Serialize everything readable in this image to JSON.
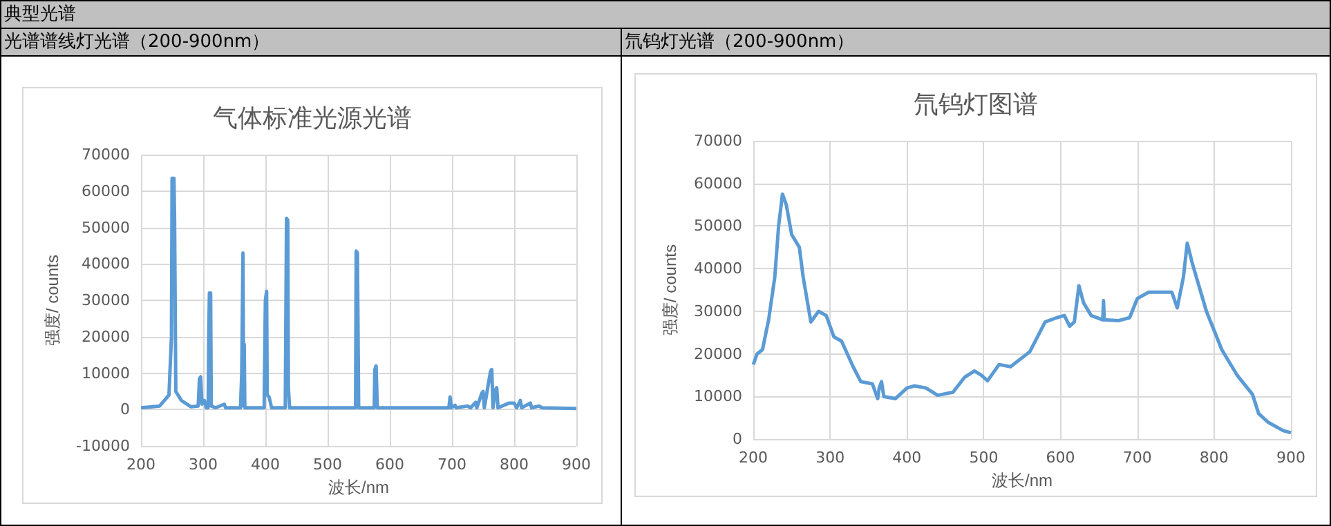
{
  "chart_data": [
    {
      "type": "line",
      "title": "气体标准光源光谱",
      "xlabel": "波长/nm",
      "ylabel": "强度/ counts",
      "annotations": [
        "典型光谱",
        "光谱谱线灯光谱（200-900nm）"
      ],
      "color": "#5b9bd5",
      "grid": true,
      "marker": "none",
      "x": [
        200,
        230,
        245,
        249,
        250,
        253,
        254,
        256,
        265,
        280,
        292,
        294,
        296,
        298,
        302,
        305,
        308,
        309,
        310,
        312,
        313,
        320,
        334,
        336,
        360,
        362,
        364,
        365,
        366,
        367,
        398,
        400,
        402,
        403,
        406,
        410,
        432,
        434,
        436,
        437,
        439,
        545,
        546,
        548,
        550,
        575,
        576,
        578,
        580,
        695,
        697,
        699,
        705,
        707,
        725,
        730,
        738,
        740,
        748,
        750,
        752,
        762,
        764,
        766,
        770,
        772,
        774,
        792,
        800,
        804,
        810,
        812,
        826,
        828,
        840,
        845,
        900
      ],
      "values": [
        500,
        1000,
        4000,
        20000,
        63500,
        63500,
        53000,
        5000,
        2500,
        800,
        1000,
        8500,
        9000,
        1500,
        2500,
        500,
        500,
        21000,
        32000,
        32000,
        1000,
        500,
        1500,
        500,
        500,
        10000,
        43000,
        1000,
        18000,
        500,
        500,
        30000,
        32500,
        4000,
        3500,
        500,
        500,
        52500,
        52000,
        6000,
        500,
        500,
        43500,
        43000,
        500,
        500,
        11000,
        12000,
        500,
        500,
        3500,
        500,
        1200,
        500,
        1000,
        500,
        2000,
        500,
        4500,
        5000,
        500,
        10500,
        11000,
        500,
        5500,
        6000,
        500,
        1800,
        1800,
        500,
        2500,
        500,
        1800,
        500,
        1000,
        500,
        300
      ],
      "xlim": [
        200,
        900
      ],
      "xticks": [
        200,
        300,
        400,
        500,
        600,
        700,
        800,
        900
      ],
      "ylim": [
        -10000,
        70000
      ],
      "yticks": [
        -10000,
        0,
        10000,
        20000,
        30000,
        40000,
        50000,
        60000,
        70000
      ]
    },
    {
      "type": "line",
      "title": "氘钨灯图谱",
      "xlabel": "波长/nm",
      "ylabel": "强度/ counts",
      "annotations": [
        "氘钨灯光谱（200-900nm）"
      ],
      "color": "#5b9bd5",
      "grid": true,
      "marker": "none",
      "x": [
        200,
        205,
        212,
        220,
        228,
        233,
        238,
        243,
        250,
        260,
        265,
        275,
        285,
        295,
        305,
        315,
        330,
        340,
        355,
        362,
        364,
        367,
        370,
        385,
        400,
        410,
        425,
        440,
        460,
        475,
        488,
        497,
        505,
        520,
        535,
        560,
        580,
        595,
        605,
        612,
        618,
        624,
        630,
        640,
        655,
        656,
        657,
        675,
        690,
        700,
        715,
        745,
        752,
        760,
        765,
        772,
        790,
        810,
        830,
        850,
        858,
        870,
        890,
        900
      ],
      "values": [
        17500,
        20000,
        21000,
        28000,
        38000,
        50000,
        57500,
        55000,
        48000,
        45000,
        38000,
        27500,
        30000,
        29000,
        24000,
        23000,
        17000,
        13500,
        13000,
        9500,
        12000,
        13500,
        10000,
        9500,
        12000,
        12500,
        12000,
        10300,
        11000,
        14500,
        16000,
        15000,
        13700,
        17500,
        17000,
        20500,
        27500,
        28500,
        29000,
        26500,
        27500,
        36000,
        32000,
        29000,
        28000,
        32500,
        28000,
        27800,
        28500,
        33000,
        34500,
        34500,
        30800,
        38000,
        46000,
        41000,
        30000,
        21000,
        15000,
        10500,
        6000,
        4000,
        2000,
        1500
      ],
      "xlim": [
        200,
        900
      ],
      "xticks": [
        200,
        300,
        400,
        500,
        600,
        700,
        800,
        900
      ],
      "ylim": [
        0,
        70000
      ],
      "yticks": [
        0,
        10000,
        20000,
        30000,
        40000,
        50000,
        60000,
        70000
      ]
    }
  ]
}
